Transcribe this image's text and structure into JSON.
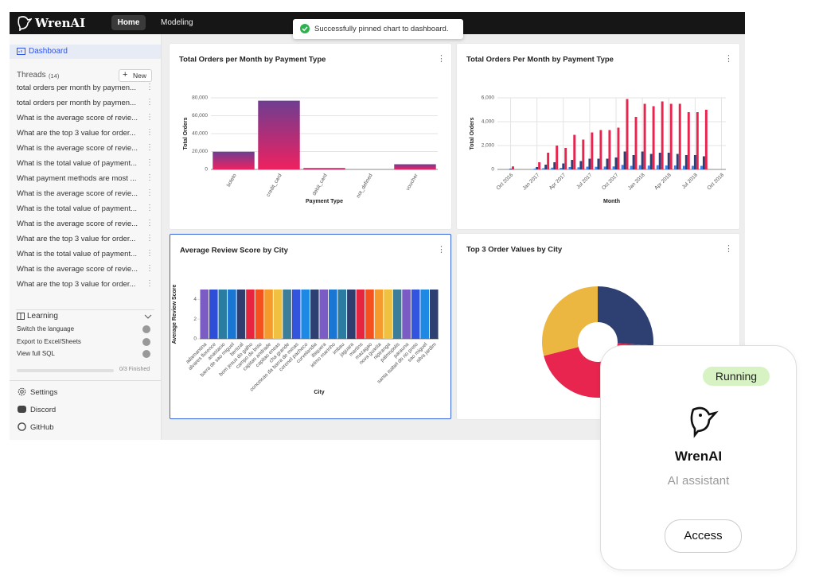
{
  "header": {
    "logo": "WrenAI",
    "nav": [
      "Home",
      "Modeling"
    ]
  },
  "toast": "Successfully pinned chart to dashboard.",
  "sidebar": {
    "dashboard": "Dashboard",
    "threads_label": "Threads",
    "threads_count": "(14)",
    "new_button": "New",
    "threads": [
      "total orders per month by paymen...",
      "total orders per month by paymen...",
      "What is the average score of revie...",
      "What are the top 3 value for order...",
      "What is the average score of revie...",
      "What is the total value of payment...",
      "What payment methods are most ...",
      "What is the average score of revie...",
      "What is the total value of payment...",
      "What is the average score of revie...",
      "What are the top 3 value for order...",
      "What is the total value of payment...",
      "What is the average score of revie...",
      "What are the top 3 value for order..."
    ],
    "learning": {
      "title": "Learning",
      "items": [
        "Switch the language",
        "Export to Excel/Sheets",
        "View full SQL"
      ],
      "progress": "0/3 Finished"
    },
    "footer": [
      "Settings",
      "Discord",
      "GitHub"
    ]
  },
  "chart_data": [
    {
      "type": "bar",
      "title": "Total Orders per Month by Payment Type",
      "x_label": "Payment Type",
      "y_label": "Total Orders",
      "categories": [
        "boleto",
        "credit_card",
        "debit_card",
        "not_defined",
        "voucher"
      ],
      "values": [
        19784,
        76795,
        1529,
        3,
        5775
      ],
      "gradient": [
        "#6f3d91",
        "#ee2160"
      ],
      "ylim": [
        0,
        80000
      ],
      "yticks": [
        0,
        {
          "value": 20000,
          "label": "20,000"
        },
        {
          "value": 40000,
          "label": "40,000"
        },
        {
          "value": 60000,
          "label": "60,000"
        },
        {
          "value": 80000,
          "label": "80,000"
        }
      ],
      "grid": true
    },
    {
      "type": "grouped_bar",
      "title": "Total Orders Per Month by Payment Type",
      "x_label": "Month",
      "y_label": "Total Orders",
      "x": [
        "2016-09",
        "2016-10",
        "2016-11",
        "2016-12",
        "2017-01",
        "2017-02",
        "2017-03",
        "2017-04",
        "2017-05",
        "2017-06",
        "2017-07",
        "2017-08",
        "2017-09",
        "2017-10",
        "2017-11",
        "2017-12",
        "2018-01",
        "2018-02",
        "2018-03",
        "2018-04",
        "2018-05",
        "2018-06",
        "2018-07",
        "2018-08",
        "2018-09",
        "2018-10"
      ],
      "series": [
        {
          "color": "#3b7ff0",
          "values": [
            0,
            20,
            0,
            0,
            60,
            100,
            150,
            130,
            200,
            180,
            230,
            220,
            240,
            250,
            380,
            300,
            350,
            320,
            350,
            330,
            330,
            300,
            300,
            300,
            0,
            0
          ]
        },
        {
          "color": "#2e3f72",
          "values": [
            0,
            60,
            0,
            0,
            200,
            400,
            600,
            500,
            800,
            700,
            900,
            900,
            900,
            1000,
            1500,
            1200,
            1500,
            1300,
            1400,
            1400,
            1300,
            1200,
            1200,
            1100,
            0,
            0
          ]
        },
        {
          "color": "#e8254f",
          "values": [
            0,
            250,
            0,
            0,
            600,
            1400,
            2000,
            1800,
            2900,
            2500,
            3100,
            3300,
            3300,
            3500,
            5900,
            4400,
            5500,
            5300,
            5700,
            5500,
            5500,
            4800,
            4800,
            5000,
            0,
            0
          ]
        }
      ],
      "ylim": [
        0,
        6000
      ],
      "yticks": [
        0,
        {
          "value": 2000,
          "label": "2,000"
        },
        {
          "value": 4000,
          "label": "4,000"
        },
        {
          "value": 6000,
          "label": "6,000"
        }
      ],
      "xticks": [
        {
          "value": "2016-10",
          "label": "Oct 2016"
        },
        {
          "value": "2017-01",
          "label": "Jan 2017"
        },
        {
          "value": "2017-04",
          "label": "Apr 2017"
        },
        {
          "value": "2017-07",
          "label": "Jul 2017"
        },
        {
          "value": "2017-10",
          "label": "Oct 2017"
        },
        {
          "value": "2018-01",
          "label": "Jan 2018"
        },
        {
          "value": "2018-04",
          "label": "Apr 2018"
        },
        {
          "value": "2018-07",
          "label": "Jul 2018"
        },
        {
          "value": "2018-10",
          "label": "Oct 2018"
        }
      ],
      "grid": true
    },
    {
      "type": "color_bar",
      "title": "Average Review Score by City",
      "x_label": "City",
      "y_label": "Average Review Score",
      "categories": [
        "adamantina",
        "alvares florence",
        "anastacio",
        "barra de sao miguel",
        "benizal",
        "bom jesus do galho",
        "campo do brito",
        "capitao andrade",
        "capitao eneas",
        "cha grande",
        "conceicao da barra de minas",
        "coronel pacheco",
        "curvelandia",
        "ibiquera",
        "ielmo marinho",
        "imbau",
        "jaguara",
        "martins",
        "mazagao",
        "nova guarita",
        "nipiranga",
        "palmopolis",
        "parauna",
        "santa isabel do rio preto",
        "sao miguel",
        "silva jardim"
      ],
      "values": [
        5,
        5,
        5,
        5,
        5,
        5,
        5,
        5,
        5,
        5,
        5,
        5,
        5,
        5,
        5,
        5,
        5,
        5,
        5,
        5,
        5,
        5,
        5,
        5,
        5,
        5
      ],
      "colors": [
        "#7b5cc4",
        "#2e4ed8",
        "#2a7da0",
        "#1976d2",
        "#2f3e6e",
        "#e8253e",
        "#f4511e",
        "#f59b2e",
        "#f0c040",
        "#3c7e9a",
        "#3355dd",
        "#1e88e5",
        "#2e3f72",
        "#7b5cc4",
        "#1976d2",
        "#2a7da0",
        "#2f3e6e",
        "#e8253e",
        "#f4511e",
        "#f59b2e",
        "#f0c040",
        "#3c7e9a",
        "#7b5cc4",
        "#3355dd",
        "#1e88e5",
        "#2e3f72"
      ],
      "ylim": [
        0,
        5
      ],
      "yticks": [
        0,
        2,
        4
      ]
    },
    {
      "type": "donut",
      "title": "Top 3 Order Values by City",
      "values": [
        26,
        45,
        29
      ],
      "colors": [
        "#2e3f72",
        "#e8254f",
        "#ecb740"
      ]
    }
  ],
  "assistant_card": {
    "status": "Running",
    "name": "WrenAI",
    "subtitle": "AI assistant",
    "button": "Access"
  }
}
